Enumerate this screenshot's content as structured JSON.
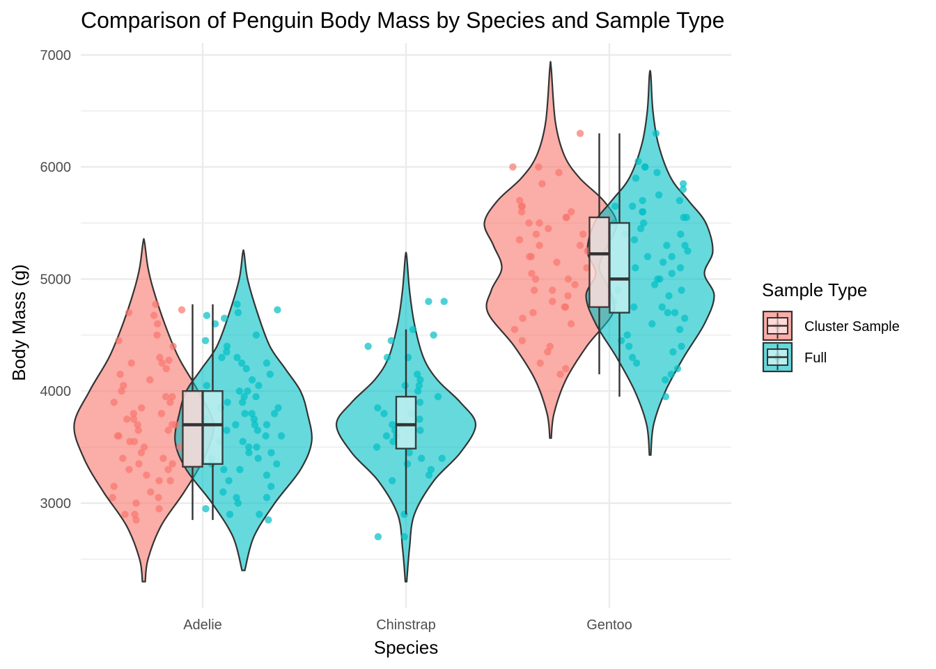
{
  "chart_data": {
    "type": "violin",
    "title": "Comparison of Penguin Body Mass by Species and Sample Type",
    "xlabel": "Species",
    "ylabel": "Body Mass (g)",
    "categories": [
      "Adelie",
      "Chinstrap",
      "Gentoo"
    ],
    "ylim": [
      2200,
      7100
    ],
    "yticks": [
      3000,
      4000,
      5000,
      6000,
      7000
    ],
    "grid": true,
    "legend": {
      "title": "Sample Type",
      "placement": "right",
      "entries": [
        {
          "name": "Cluster Sample",
          "color": "#F8766D"
        },
        {
          "name": "Full",
          "color": "#00BFC4"
        }
      ]
    },
    "series": [
      {
        "name": "Cluster Sample",
        "color": "#F8766D",
        "groups": [
          {
            "category": "Adelie",
            "box": {
              "min": 2850,
              "q1": 3325,
              "median": 3700,
              "q3": 4000,
              "max": 4775
            },
            "violin_range": [
              2300,
              5330
            ],
            "density": [
              [
                2300,
                0.02
              ],
              [
                2500,
                0.06
              ],
              [
                2800,
                0.25
              ],
              [
                3100,
                0.58
              ],
              [
                3400,
                0.86
              ],
              [
                3700,
                1.0
              ],
              [
                4000,
                0.78
              ],
              [
                4300,
                0.5
              ],
              [
                4600,
                0.3
              ],
              [
                4900,
                0.14
              ],
              [
                5100,
                0.06
              ],
              [
                5330,
                0.01
              ]
            ],
            "points": [
              4775,
              4700,
              4675,
              4725,
              4600,
              4500,
              4450,
              4400,
              4300,
              4275,
              4250,
              4250,
              4200,
              4150,
              4100,
              4050,
              4000,
              3950,
              3950,
              3900,
              3900,
              3850,
              3800,
              3800,
              3750,
              3750,
              3700,
              3700,
              3700,
              3650,
              3650,
              3600,
              3600,
              3550,
              3550,
              3500,
              3500,
              3450,
              3400,
              3400,
              3350,
              3350,
              3300,
              3300,
              3250,
              3200,
              3200,
              3150,
              3100,
              3050,
              3050,
              3000,
              2950,
              2900,
              2900,
              2850
            ]
          },
          {
            "category": "Gentoo",
            "box": {
              "min": 4150,
              "q1": 4750,
              "median": 5225,
              "q3": 5550,
              "max": 6300
            },
            "violin_range": [
              3580,
              6880
            ],
            "density": [
              [
                3580,
                0.01
              ],
              [
                3800,
                0.05
              ],
              [
                4100,
                0.22
              ],
              [
                4400,
                0.52
              ],
              [
                4700,
                0.9
              ],
              [
                4900,
                0.85
              ],
              [
                5100,
                0.7
              ],
              [
                5300,
                0.82
              ],
              [
                5500,
                0.95
              ],
              [
                5700,
                0.76
              ],
              [
                5900,
                0.42
              ],
              [
                6100,
                0.2
              ],
              [
                6400,
                0.07
              ],
              [
                6880,
                0.01
              ]
            ],
            "points": [
              6300,
              6000,
              6000,
              5950,
              5850,
              5700,
              5650,
              5650,
              5600,
              5600,
              5550,
              5550,
              5500,
              5500,
              5450,
              5400,
              5400,
              5350,
              5300,
              5300,
              5250,
              5200,
              5200,
              5150,
              5100,
              5050,
              5000,
              5000,
              4950,
              4900,
              4900,
              4850,
              4800,
              4750,
              4750,
              4700,
              4650,
              4600,
              4550,
              4450,
              4400,
              4350,
              4250,
              4200,
              4150
            ]
          }
        ]
      },
      {
        "name": "Full",
        "color": "#00BFC4",
        "groups": [
          {
            "category": "Adelie",
            "box": {
              "min": 2850,
              "q1": 3350,
              "median": 3700,
              "q3": 4000,
              "max": 4775
            },
            "violin_range": [
              2400,
              5230
            ],
            "density": [
              [
                2400,
                0.02
              ],
              [
                2700,
                0.15
              ],
              [
                3000,
                0.45
              ],
              [
                3300,
                0.82
              ],
              [
                3550,
                0.98
              ],
              [
                3800,
                0.92
              ],
              [
                4000,
                0.82
              ],
              [
                4200,
                0.6
              ],
              [
                4400,
                0.38
              ],
              [
                4700,
                0.2
              ],
              [
                5000,
                0.06
              ],
              [
                5230,
                0.01
              ]
            ],
            "points": [
              4775,
              4725,
              4700,
              4675,
              4650,
              4600,
              4500,
              4450,
              4400,
              4350,
              4300,
              4300,
              4250,
              4250,
              4200,
              4150,
              4100,
              4050,
              4050,
              4000,
              4000,
              3950,
              3950,
              3900,
              3900,
              3850,
              3850,
              3800,
              3800,
              3800,
              3750,
              3750,
              3700,
              3700,
              3700,
              3650,
              3650,
              3600,
              3600,
              3550,
              3550,
              3500,
              3500,
              3450,
              3450,
              3400,
              3400,
              3350,
              3350,
              3300,
              3300,
              3250,
              3200,
              3150,
              3100,
              3050,
              3050,
              3000,
              2950,
              2900,
              2900,
              2850
            ]
          },
          {
            "category": "Chinstrap",
            "box": {
              "min": 2900,
              "q1": 3487,
              "median": 3700,
              "q3": 3950,
              "max": 4550
            },
            "violin_range": [
              2300,
              5200
            ],
            "density": [
              [
                2300,
                0.01
              ],
              [
                2600,
                0.05
              ],
              [
                2900,
                0.12
              ],
              [
                3200,
                0.4
              ],
              [
                3450,
                0.78
              ],
              [
                3700,
                1.0
              ],
              [
                3900,
                0.78
              ],
              [
                4100,
                0.45
              ],
              [
                4300,
                0.25
              ],
              [
                4600,
                0.12
              ],
              [
                4900,
                0.05
              ],
              [
                5200,
                0.01
              ]
            ],
            "points": [
              4800,
              4800,
              4550,
              4500,
              4450,
              4400,
              4300,
              4300,
              4150,
              4100,
              4050,
              4050,
              4000,
              3950,
              3900,
              3850,
              3800,
              3800,
              3750,
              3700,
              3700,
              3650,
              3650,
              3600,
              3600,
              3550,
              3500,
              3450,
              3400,
              3400,
              3350,
              3300,
              3250,
              3200,
              2900,
              2700,
              2700
            ]
          },
          {
            "category": "Gentoo",
            "box": {
              "min": 3950,
              "q1": 4700,
              "median": 5000,
              "q3": 5500,
              "max": 6300
            },
            "violin_range": [
              3430,
              6820
            ],
            "density": [
              [
                3430,
                0.01
              ],
              [
                3700,
                0.05
              ],
              [
                4000,
                0.22
              ],
              [
                4300,
                0.48
              ],
              [
                4600,
                0.78
              ],
              [
                4850,
                0.92
              ],
              [
                5050,
                0.78
              ],
              [
                5250,
                0.9
              ],
              [
                5500,
                0.8
              ],
              [
                5700,
                0.55
              ],
              [
                5900,
                0.3
              ],
              [
                6200,
                0.12
              ],
              [
                6500,
                0.04
              ],
              [
                6820,
                0.01
              ]
            ],
            "points": [
              6300,
              6050,
              6000,
              6000,
              5950,
              5900,
              5850,
              5800,
              5750,
              5700,
              5700,
              5650,
              5650,
              5600,
              5600,
              5550,
              5550,
              5500,
              5500,
              5450,
              5400,
              5400,
              5350,
              5300,
              5300,
              5250,
              5200,
              5200,
              5150,
              5100,
              5100,
              5050,
              5000,
              5000,
              4950,
              4900,
              4900,
              4850,
              4800,
              4750,
              4750,
              4700,
              4700,
              4650,
              4600,
              4550,
              4500,
              4450,
              4400,
              4400,
              4350,
              4300,
              4250,
              4200,
              4150,
              4100,
              3950
            ]
          }
        ]
      }
    ]
  }
}
